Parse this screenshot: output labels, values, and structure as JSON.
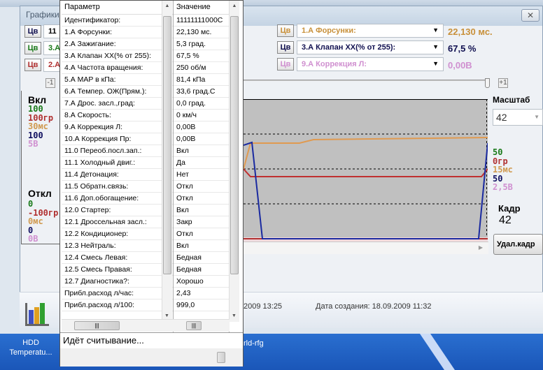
{
  "window": {
    "title": "Графики",
    "close_icon": "close-icon"
  },
  "left_panel": {
    "color_button_label": "Цв",
    "channels_partial": [
      "11",
      "3.А",
      "2.А"
    ],
    "minus_button": "-1",
    "on_label": "Вкл",
    "on_values": [
      {
        "text": "100",
        "color": "#1a7a1a"
      },
      {
        "text": "100гр",
        "color": "#b03030"
      },
      {
        "text": "30мс",
        "color": "#d09a50"
      },
      {
        "text": "100",
        "color": "#101060"
      },
      {
        "text": "5В",
        "color": "#d090d0"
      }
    ],
    "off_label": "Откл",
    "off_values": [
      {
        "text": "0",
        "color": "#1a7a1a"
      },
      {
        "text": "-100гр",
        "color": "#b03030"
      },
      {
        "text": "0мс",
        "color": "#d09a50"
      },
      {
        "text": "0",
        "color": "#101060"
      },
      {
        "text": "0В",
        "color": "#d090d0"
      }
    ]
  },
  "channels": [
    {
      "button": "Цв",
      "name": "1.А  Форсунки:",
      "value": "22,130 мс.",
      "color": "#c8903a"
    },
    {
      "button": "Цв",
      "name": "3.А  Клапан ХХ(% от 255):",
      "value": "67,5 %",
      "color": "#101050"
    },
    {
      "button": "Цв",
      "name": "9.А  Коррекция Л:",
      "value": "0,00В",
      "color": "#d090d0"
    }
  ],
  "plus_button": "+1",
  "scale": {
    "label": "Масштаб",
    "value": "42"
  },
  "mid_values": [
    {
      "text": "50",
      "color": "#1a7a1a"
    },
    {
      "text": "0гр",
      "color": "#b03030"
    },
    {
      "text": "15мс",
      "color": "#d09a50"
    },
    {
      "text": "50",
      "color": "#101060"
    },
    {
      "text": "2,5В",
      "color": "#d090d0"
    }
  ],
  "frame": {
    "label": "Кадр",
    "value": "42",
    "delete_button": "Удал.кадр"
  },
  "status": {
    "modified_partial": "2009 13:25",
    "created": "Дата создания: 18.09.2009 11:32"
  },
  "popup": {
    "header_param": "Параметр",
    "header_value": "Значение",
    "rows": [
      [
        "Идентификатор:",
        "11111111000С"
      ],
      [
        "1.А  Форсунки:",
        "22,130 мс."
      ],
      [
        "2.А  Зажигание:",
        "5,3 град."
      ],
      [
        "3.А  Клапан ХХ(% от 255):",
        "67,5 %"
      ],
      [
        "4.А  Частота вращения:",
        "250 об/м"
      ],
      [
        "5.А  MAP в кПа:",
        "81,4 кПа"
      ],
      [
        "6.А  Темпер. ОЖ(Прям.):",
        "33,6 град.С"
      ],
      [
        "7.А  Дрос. засл.,град:",
        "0,0 град."
      ],
      [
        "8.А  Скорость:",
        "0 км/ч"
      ],
      [
        "9.А  Коррекция Л:",
        "0,00В"
      ],
      [
        "10.А  Коррекция Пр:",
        "0,00В"
      ],
      [
        "11.0  Переоб.посл.зап.:",
        "Вкл"
      ],
      [
        "11.1  Холодный двиг.:",
        "Да"
      ],
      [
        "11.4  Детонация:",
        "Нет"
      ],
      [
        "11.5  Обратн.связь:",
        "Откл"
      ],
      [
        "11.6  Доп.обогащение:",
        "Откл"
      ],
      [
        "12.0  Стартер:",
        "Вкл"
      ],
      [
        "12.1  Дроссельная засл.:",
        "Закр"
      ],
      [
        "12.2  Кондиционер:",
        "Откл"
      ],
      [
        "12.3  Нейтраль:",
        "Вкл"
      ],
      [
        "12.4  Смесь Левая:",
        "Бедная"
      ],
      [
        "12.5  Смесь Правая:",
        "Бедная"
      ],
      [
        "12.7  Диагностика?:",
        "Хорошо"
      ],
      [
        "Прибл.расход л/час:",
        "2,43"
      ],
      [
        "Прибл.расход л/100:",
        "999,0"
      ]
    ],
    "status": "Идёт считывание..."
  },
  "taskbar": {
    "item1": "HDD Temperatu...",
    "item2": "rld-rfg"
  }
}
